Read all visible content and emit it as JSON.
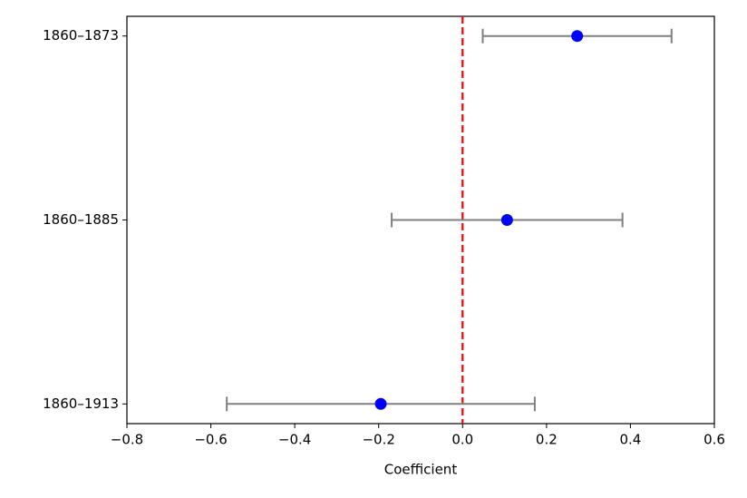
{
  "chart_data": {
    "type": "errorbar",
    "x_label": "Coefficient",
    "categories": [
      "1860–1873",
      "1860–1885",
      "1860–1913"
    ],
    "series": [
      {
        "color": "#0000ff",
        "error_color": "#808080",
        "values": [
          0.273,
          0.106,
          -0.195
        ],
        "errors": [
          0.225,
          0.275,
          0.367
        ]
      }
    ],
    "xlim": [
      -0.8,
      0.6
    ],
    "xticks": [
      {
        "value": -0.8,
        "label": "−0.8"
      },
      {
        "value": -0.6,
        "label": "−0.6"
      },
      {
        "value": -0.4,
        "label": "−0.4"
      },
      {
        "value": -0.2,
        "label": "−0.2"
      },
      {
        "value": 0,
        "label": "0.0"
      },
      0.2,
      0.4,
      0.6
    ],
    "reference_line": {
      "x": 0,
      "color": "#ff0000"
    }
  }
}
